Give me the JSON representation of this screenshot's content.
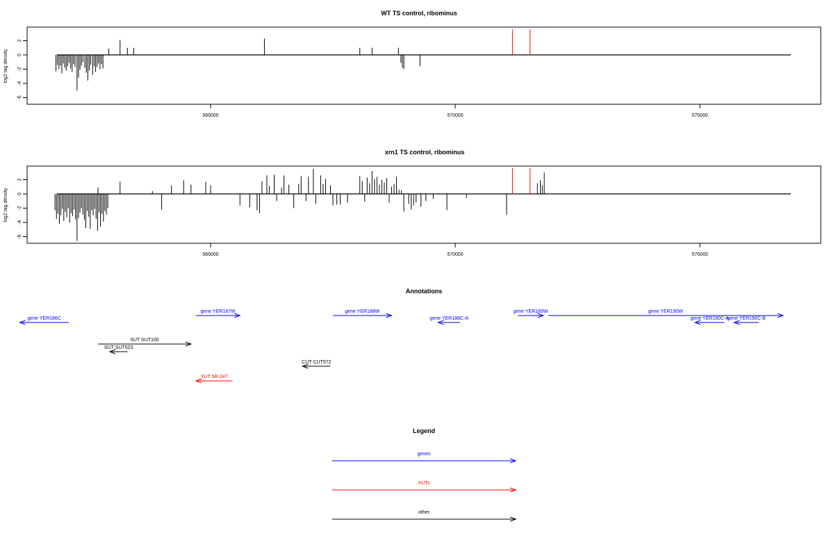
{
  "chart_data": [
    {
      "type": "bar",
      "title": "WT TS control, ribominus",
      "ylabel": "log2 tag density",
      "xlim": [
        561000,
        577000
      ],
      "ylim": [
        -7,
        4
      ],
      "xticks": [
        565000,
        570000,
        575000
      ],
      "yticks": [
        2,
        0,
        -2,
        -4,
        -6
      ],
      "grid": false,
      "series": [
        {
          "color": "#000000",
          "points": [
            [
              561840,
              -2.3
            ],
            [
              561870,
              -1.4
            ],
            [
              561900,
              -2.0
            ],
            [
              561930,
              -1.5
            ],
            [
              561960,
              -2.6
            ],
            [
              561990,
              -1.2
            ],
            [
              562020,
              -1.8
            ],
            [
              562050,
              -2.2
            ],
            [
              562080,
              -1.6
            ],
            [
              562110,
              -1.1
            ],
            [
              562140,
              -1.9
            ],
            [
              562170,
              -2.4
            ],
            [
              562200,
              -1.3
            ],
            [
              562230,
              -1.7
            ],
            [
              562270,
              -5.0
            ],
            [
              562300,
              -3.2
            ],
            [
              562330,
              -2.1
            ],
            [
              562360,
              -1.5
            ],
            [
              562390,
              -1.0
            ],
            [
              562430,
              -1.8
            ],
            [
              562460,
              -2.5
            ],
            [
              562490,
              -3.6
            ],
            [
              562520,
              -2.2
            ],
            [
              562550,
              -1.4
            ],
            [
              562590,
              -2.8
            ],
            [
              562620,
              -1.6
            ],
            [
              562650,
              -2.4
            ],
            [
              562680,
              -1.7
            ],
            [
              562710,
              -1.2
            ],
            [
              562740,
              -2.0
            ],
            [
              562770,
              -1.3
            ],
            [
              562800,
              -1.9
            ],
            [
              562920,
              0.9
            ],
            [
              563150,
              2.1
            ],
            [
              563300,
              1.0
            ],
            [
              563430,
              1.0
            ],
            [
              566100,
              2.3
            ],
            [
              568050,
              1.0
            ],
            [
              568300,
              1.0
            ],
            [
              568840,
              1.0
            ],
            [
              568890,
              -1.1
            ],
            [
              568920,
              -1.8
            ],
            [
              568950,
              -2.0
            ],
            [
              569280,
              -1.6
            ]
          ]
        },
        {
          "color": "#ff0000",
          "points": [
            [
              571170,
              3.6
            ],
            [
              571530,
              3.6
            ]
          ]
        }
      ]
    },
    {
      "type": "bar",
      "title": "xrn1 TS control, ribominus",
      "ylabel": "log2 tag density",
      "xlim": [
        561000,
        577000
      ],
      "ylim": [
        -7,
        4
      ],
      "xticks": [
        565000,
        570000,
        575000
      ],
      "yticks": [
        2,
        0,
        -2,
        -4,
        -6
      ],
      "grid": false,
      "series": [
        {
          "color": "#000000",
          "points": [
            [
              561820,
              -2.3
            ],
            [
              561850,
              -3.5
            ],
            [
              561880,
              -2.8
            ],
            [
              561910,
              -4.2
            ],
            [
              561940,
              -3.0
            ],
            [
              561970,
              -2.1
            ],
            [
              562000,
              -3.8
            ],
            [
              562030,
              -2.5
            ],
            [
              562060,
              -3.3
            ],
            [
              562090,
              -2.0
            ],
            [
              562120,
              -4.0
            ],
            [
              562150,
              -2.7
            ],
            [
              562180,
              -3.1
            ],
            [
              562210,
              -2.2
            ],
            [
              562240,
              -3.6
            ],
            [
              562270,
              -6.6
            ],
            [
              562300,
              -3.4
            ],
            [
              562330,
              -2.6
            ],
            [
              562360,
              -2.0
            ],
            [
              562390,
              -2.9
            ],
            [
              562420,
              -3.7
            ],
            [
              562450,
              -4.8
            ],
            [
              562480,
              -2.4
            ],
            [
              562510,
              -3.2
            ],
            [
              562540,
              -4.9
            ],
            [
              562570,
              -2.3
            ],
            [
              562600,
              -3.0
            ],
            [
              562630,
              -2.1
            ],
            [
              562660,
              -3.5
            ],
            [
              562690,
              -5.2
            ],
            [
              562720,
              -2.6
            ],
            [
              562750,
              -4.6
            ],
            [
              562780,
              -2.8
            ],
            [
              562810,
              -3.9
            ],
            [
              562840,
              -2.4
            ],
            [
              562870,
              -2.9
            ],
            [
              562900,
              -2.0
            ],
            [
              562700,
              0.9
            ],
            [
              563150,
              1.7
            ],
            [
              563810,
              0.4
            ],
            [
              564000,
              -2.2
            ],
            [
              564200,
              1.2
            ],
            [
              564450,
              1.9
            ],
            [
              564600,
              1.3
            ],
            [
              564900,
              1.7
            ],
            [
              565000,
              1.2
            ],
            [
              565600,
              -1.6
            ],
            [
              565800,
              -1.9
            ],
            [
              565950,
              -2.3
            ],
            [
              566000,
              -2.7
            ],
            [
              566050,
              1.8
            ],
            [
              566150,
              2.6
            ],
            [
              566200,
              1.1
            ],
            [
              566300,
              2.7
            ],
            [
              566350,
              -1.0
            ],
            [
              566450,
              0.9
            ],
            [
              566500,
              2.6
            ],
            [
              566600,
              1.3
            ],
            [
              566700,
              -2.0
            ],
            [
              566800,
              1.4
            ],
            [
              566850,
              2.5
            ],
            [
              566950,
              -1.0
            ],
            [
              567000,
              2.4
            ],
            [
              567100,
              3.5
            ],
            [
              567150,
              -1.4
            ],
            [
              567250,
              2.6
            ],
            [
              567300,
              1.4
            ],
            [
              567350,
              2.1
            ],
            [
              567450,
              1.2
            ],
            [
              567450,
              0.5
            ],
            [
              567500,
              -1.6
            ],
            [
              567580,
              -1.5
            ],
            [
              567650,
              -1.5
            ],
            [
              567800,
              -1.2
            ],
            [
              568050,
              2.5
            ],
            [
              568100,
              1.8
            ],
            [
              568150,
              -1.1
            ],
            [
              568200,
              2.3
            ],
            [
              568250,
              1.5
            ],
            [
              568300,
              3.2
            ],
            [
              568350,
              2.1
            ],
            [
              568400,
              2.4
            ],
            [
              568450,
              1.3
            ],
            [
              568500,
              2.0
            ],
            [
              568550,
              1.6
            ],
            [
              568600,
              2.2
            ],
            [
              568650,
              -1.2
            ],
            [
              568700,
              1.0
            ],
            [
              568750,
              1.4
            ],
            [
              568800,
              2.4
            ],
            [
              568850,
              0.6
            ],
            [
              568900,
              0.5
            ],
            [
              568950,
              -2.5
            ],
            [
              569050,
              -1.4
            ],
            [
              569100,
              -2.2
            ],
            [
              569150,
              -1.6
            ],
            [
              569200,
              -1.2
            ],
            [
              569300,
              -1.8
            ],
            [
              569400,
              -1.0
            ],
            [
              569550,
              -0.7
            ],
            [
              569830,
              -2.3
            ],
            [
              570230,
              -0.6
            ],
            [
              571050,
              -2.9
            ],
            [
              571680,
              1.5
            ],
            [
              571740,
              1.9
            ],
            [
              571780,
              1.2
            ],
            [
              571820,
              3.0
            ]
          ]
        },
        {
          "color": "#ff0000",
          "points": [
            [
              571170,
              3.6
            ],
            [
              571530,
              3.6
            ]
          ]
        }
      ]
    }
  ],
  "annotations": {
    "title": "Annotations",
    "features": [
      {
        "label": "gene YER186C",
        "start": 562100,
        "end": 561100,
        "row": 1,
        "color": "#0000ff"
      },
      {
        "label": "gene YER187W",
        "start": 564700,
        "end": 565600,
        "row": 0,
        "color": "#0000ff"
      },
      {
        "label": "gene YER188W",
        "start": 567500,
        "end": 568700,
        "row": 0,
        "color": "#0000ff"
      },
      {
        "label": "gene YER188C-A",
        "start": 570100,
        "end": 569650,
        "row": 1,
        "color": "#0000ff"
      },
      {
        "label": "gene YER189W",
        "start": 571280,
        "end": 571800,
        "row": 0,
        "color": "#0000ff"
      },
      {
        "label": "gene YER190W",
        "start": 571900,
        "end": 576700,
        "row": 0,
        "color": "#0000ff"
      },
      {
        "label": "gene YER190C-A",
        "start": 575500,
        "end": 574900,
        "row": 1,
        "color": "#0000ff"
      },
      {
        "label": "gene YER190C-B",
        "start": 576200,
        "end": 575700,
        "row": 1,
        "color": "#0000ff"
      },
      {
        "label": "SUT SUT100",
        "start": 562700,
        "end": 564600,
        "row": 2,
        "color": "#000000"
      },
      {
        "label": "SUT SUT523",
        "start": 563300,
        "end": 562940,
        "row": 3,
        "color": "#000000"
      },
      {
        "label": "CUT CUT572",
        "start": 567450,
        "end": 566880,
        "row": 4,
        "color": "#000000"
      },
      {
        "label": "XUT 5R-247",
        "start": 565450,
        "end": 564700,
        "row": 5,
        "color": "#ff0000"
      }
    ]
  },
  "legend": {
    "title": "Legend",
    "items": [
      {
        "label": "genes",
        "color": "#0000ff"
      },
      {
        "label": "XUTs",
        "color": "#ff0000"
      },
      {
        "label": "other",
        "color": "#000000"
      }
    ]
  }
}
